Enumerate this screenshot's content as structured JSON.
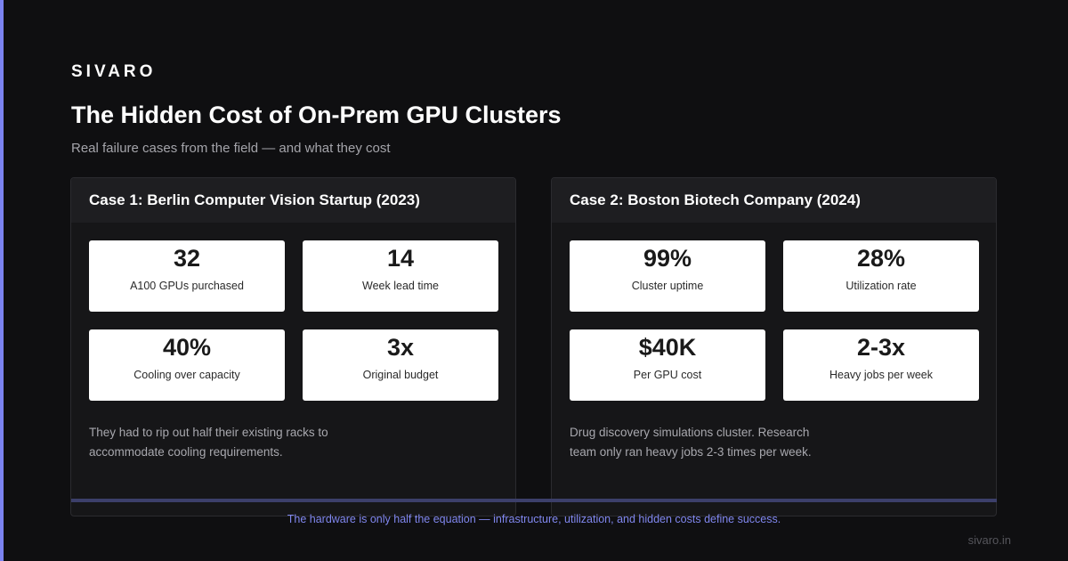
{
  "brand": "SIVARO",
  "title": "The Hidden Cost of On-Prem GPU Clusters",
  "subtitle": "Real failure cases from the field — and what they cost",
  "cases": [
    {
      "heading": "Case 1: Berlin Computer Vision Startup (2023)",
      "stats": [
        {
          "value": "32",
          "label": "A100 GPUs purchased"
        },
        {
          "value": "14",
          "label": "Week lead time"
        },
        {
          "value": "40%",
          "label": "Cooling over capacity"
        },
        {
          "value": "3x",
          "label": "Original budget"
        }
      ],
      "note": "They had to rip out half their existing racks to accommodate cooling requirements."
    },
    {
      "heading": "Case 2: Boston Biotech Company (2024)",
      "stats": [
        {
          "value": "99%",
          "label": "Cluster uptime"
        },
        {
          "value": "28%",
          "label": "Utilization rate"
        },
        {
          "value": "$40K",
          "label": "Per GPU cost"
        },
        {
          "value": "2-3x",
          "label": "Heavy jobs per week"
        }
      ],
      "note": "Drug discovery simulations cluster. Research team only ran heavy jobs 2-3 times per week."
    }
  ],
  "footer": {
    "tagline": "The hardware is only half the equation — infrastructure, utilization, and hidden costs define success.",
    "url": "sivaro.in"
  },
  "colors": {
    "background": "#0f0f11",
    "accent": "#7b83f0",
    "card": "#161618",
    "stat_tile": "#ffffff"
  }
}
